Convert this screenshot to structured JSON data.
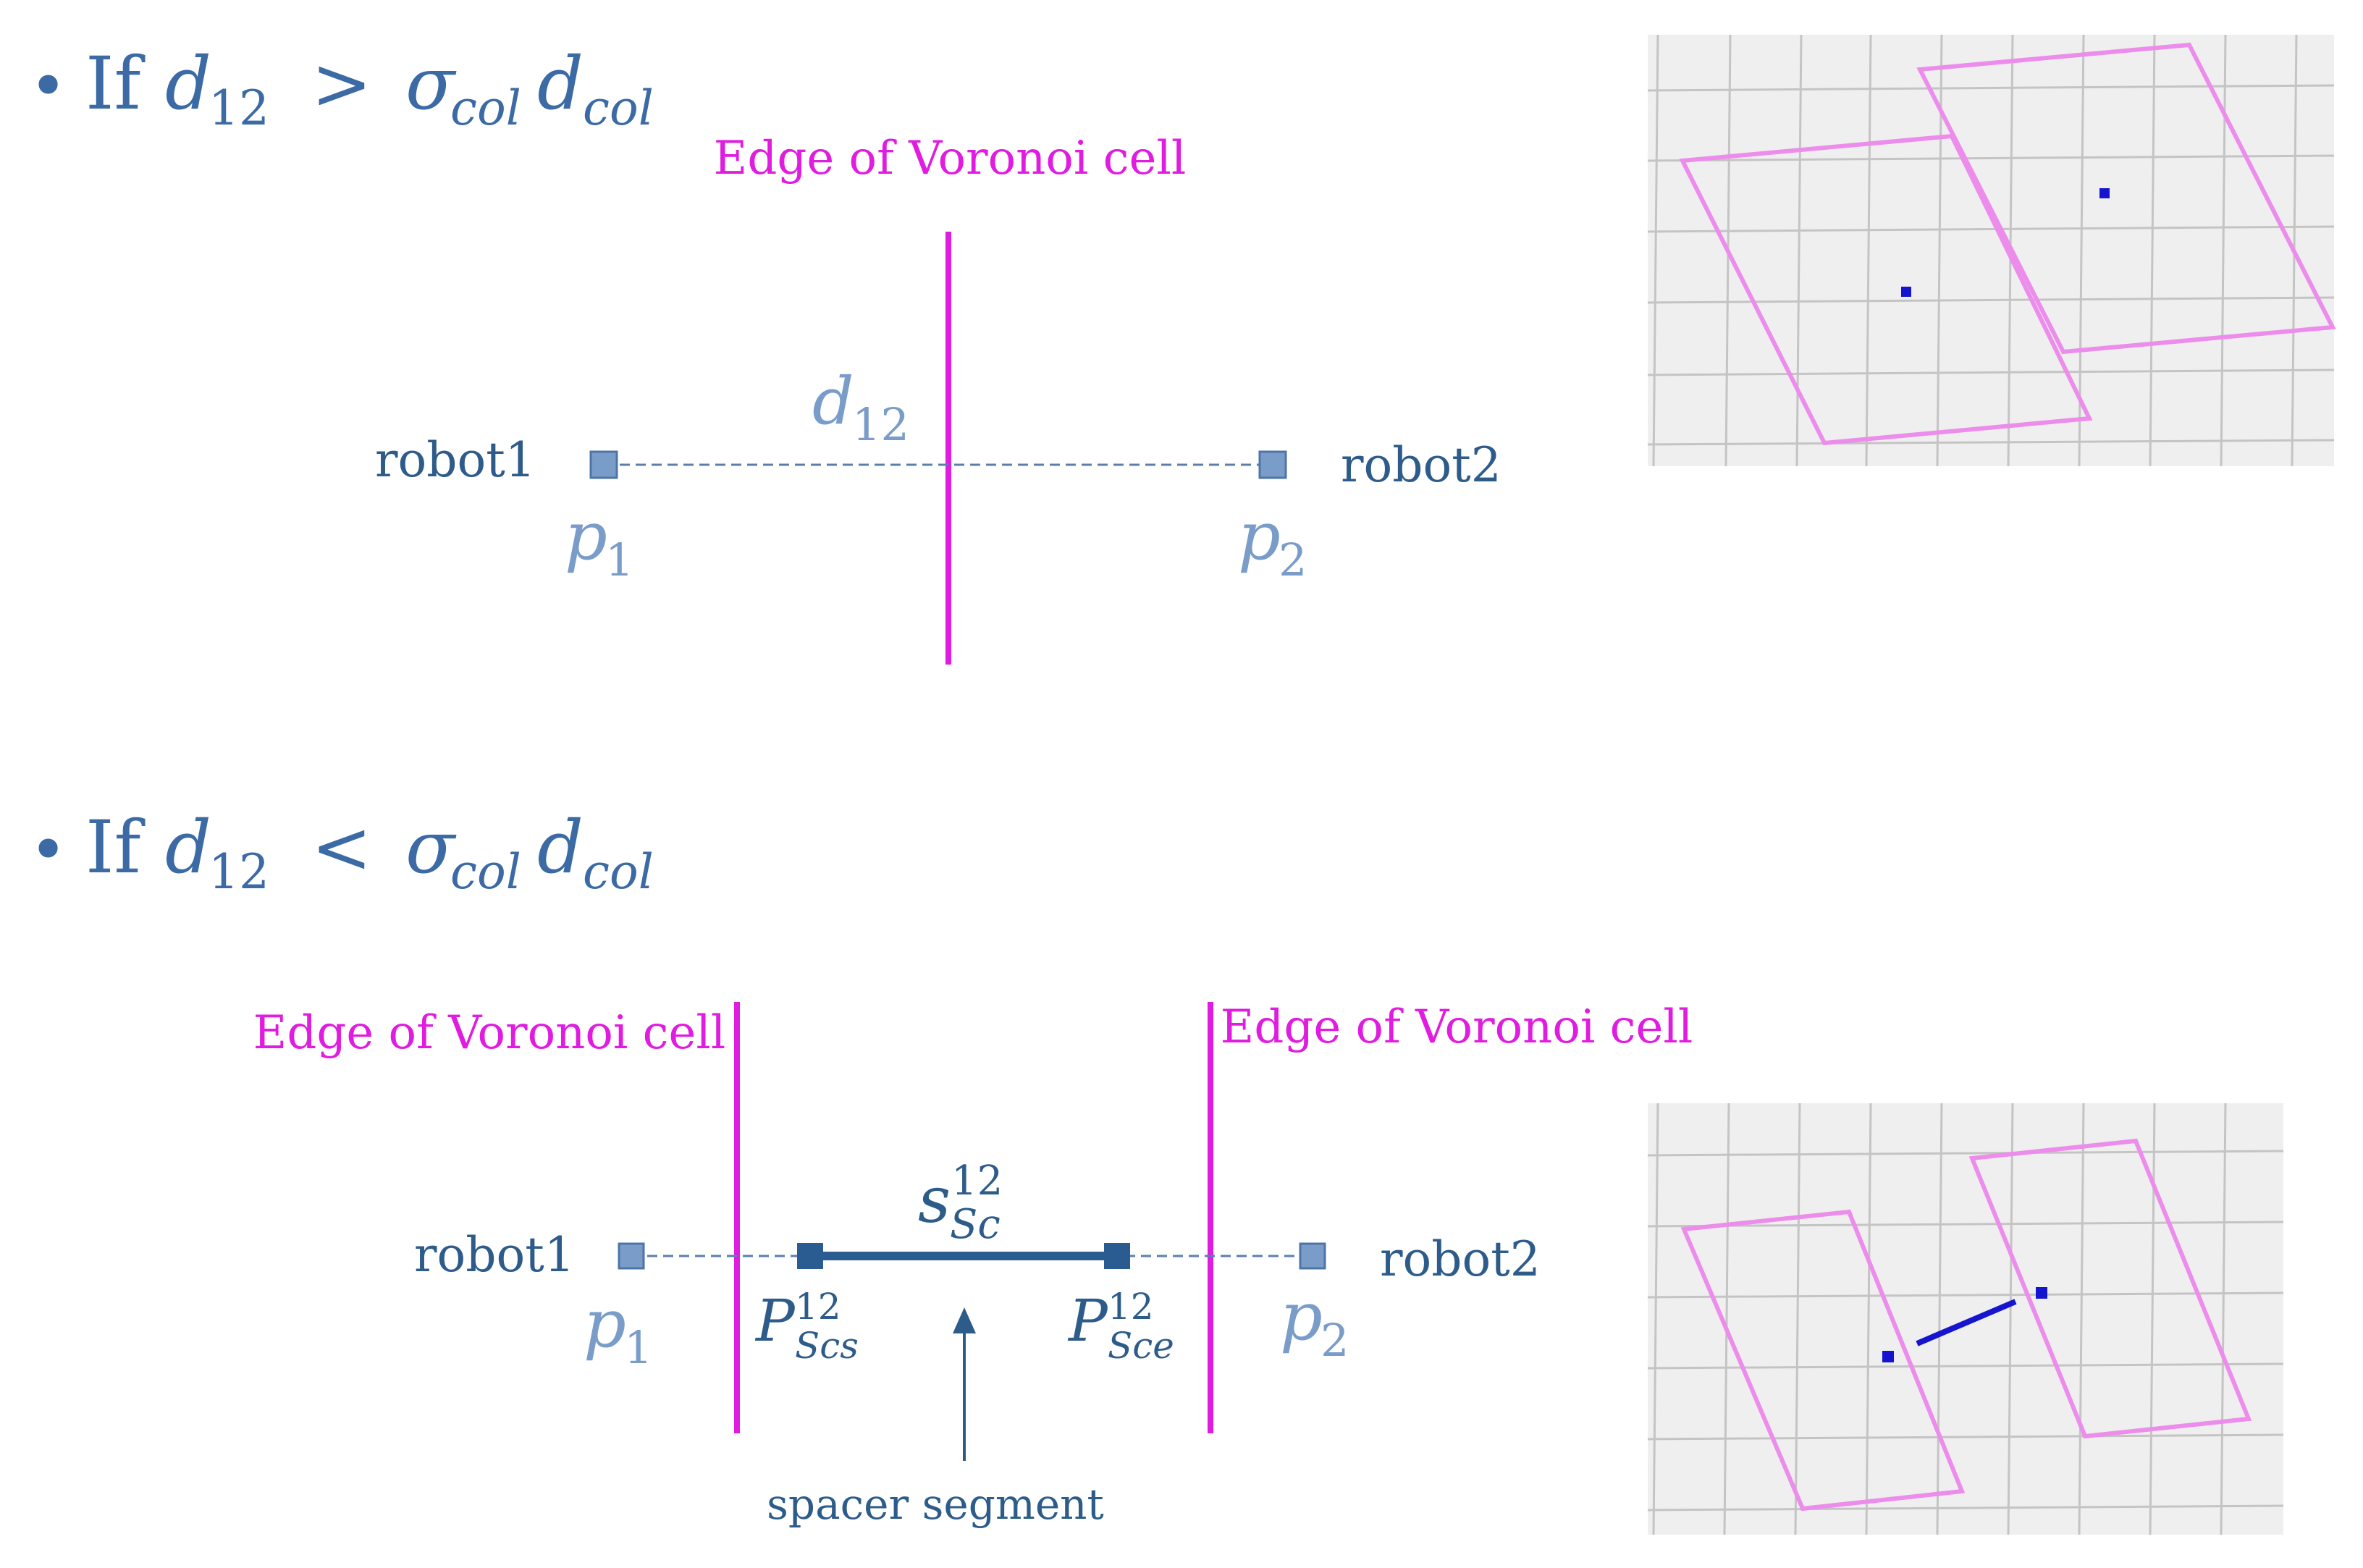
{
  "section1": {
    "bullet": "•",
    "cond": {
      "if": "If",
      "d": "d",
      "d_sub": "12",
      "op": ">",
      "sigma": "σ",
      "sigma_sub": "col",
      "dc": "d",
      "dc_sub": "col"
    },
    "voronoi_label": "Edge of Voronoi cell",
    "distance_label": {
      "main": "d",
      "sub": "12"
    },
    "robot1": "robot1",
    "robot2": "robot2",
    "p1": {
      "main": "p",
      "sub": "1"
    },
    "p2": {
      "main": "p",
      "sub": "2"
    }
  },
  "section2": {
    "bullet": "•",
    "cond": {
      "if": "If",
      "d": "d",
      "d_sub": "12",
      "op": "<",
      "sigma": "σ",
      "sigma_sub": "col",
      "dc": "d",
      "dc_sub": "col"
    },
    "voronoi_label_left": "Edge of Voronoi cell",
    "voronoi_label_right": "Edge of Voronoi cell",
    "segment_label": {
      "main": "s",
      "sup": "12",
      "sub": "Sc"
    },
    "robot1": "robot1",
    "robot2": "robot2",
    "p1": {
      "main": "p",
      "sub": "1"
    },
    "p2": {
      "main": "p",
      "sub": "2"
    },
    "ps_start": {
      "main": "P",
      "sup": "12",
      "sub": "Scs"
    },
    "ps_end": {
      "main": "P",
      "sup": "12",
      "sub": "Sce"
    },
    "spacer_label": "spacer segment"
  },
  "colors": {
    "text_blue": "#2E5C8A",
    "light_blue": "#7A9CC9",
    "magenta": "#E01CE0",
    "dark_blue": "#2B5C91",
    "panel_bg": "#EFEFEF",
    "grid": "#C4C4C4",
    "cell_pink": "#EC8DEC",
    "dot_blue": "#1515D0"
  }
}
